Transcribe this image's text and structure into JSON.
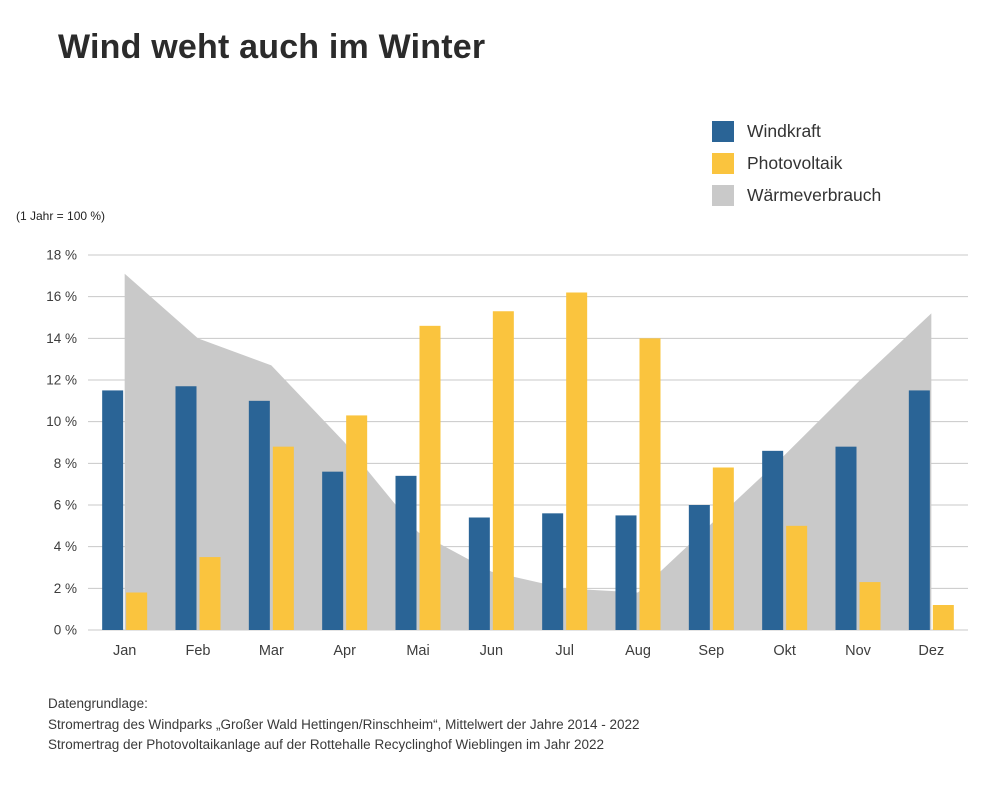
{
  "title": "Wind weht auch im Winter",
  "axis_note": "(1 Jahr = 100 %)",
  "legend": [
    {
      "label": "Windkraft",
      "color": "#2a6496",
      "swatch_icon": "blue-square-icon"
    },
    {
      "label": "Photovoltaik",
      "color": "#fac43e",
      "swatch_icon": "yellow-square-icon"
    },
    {
      "label": "Wärmeverbrauch",
      "color": "#c9c9c9",
      "swatch_icon": "gray-square-icon"
    }
  ],
  "footer": {
    "heading": "Datengrundlage:",
    "line1": "Stromertrag des Windparks „Großer Wald Hettingen/Rinschheim“, Mittelwert der Jahre 2014 - 2022",
    "line2": "Stromertrag der Photovoltaikanlage auf der Rottehalle Recyclinghof Wieblingen im Jahr 2022"
  },
  "chart_data": {
    "type": "bar",
    "title": "Wind weht auch im Winter",
    "subtitle_note": "(1 Jahr = 100 %)",
    "categories": [
      "Jan",
      "Feb",
      "Mar",
      "Apr",
      "Mai",
      "Jun",
      "Jul",
      "Aug",
      "Sep",
      "Okt",
      "Nov",
      "Dez"
    ],
    "series": [
      {
        "name": "Windkraft",
        "type": "bar",
        "color": "#2a6496",
        "values": [
          11.5,
          11.7,
          11.0,
          7.6,
          7.4,
          5.4,
          5.6,
          5.5,
          6.0,
          8.6,
          8.8,
          11.5
        ]
      },
      {
        "name": "Photovoltaik",
        "type": "bar",
        "color": "#fac43e",
        "values": [
          1.8,
          3.5,
          8.8,
          10.3,
          14.6,
          15.3,
          16.2,
          14.0,
          7.8,
          5.0,
          2.3,
          1.2
        ]
      },
      {
        "name": "Wärmeverbrauch",
        "type": "area",
        "color": "#c9c9c9",
        "values": [
          17.1,
          14.0,
          12.7,
          9.0,
          4.7,
          2.8,
          2.0,
          1.8,
          5.1,
          8.4,
          11.9,
          15.2
        ]
      }
    ],
    "xlabel": "",
    "ylabel": "",
    "ylim": [
      0,
      18
    ],
    "ytick_step": 2,
    "ytick_suffix": " %",
    "grid": true,
    "gridline_color": "#c8c8c8",
    "legend_position": "top-right",
    "unit": "percent of yearly total"
  }
}
